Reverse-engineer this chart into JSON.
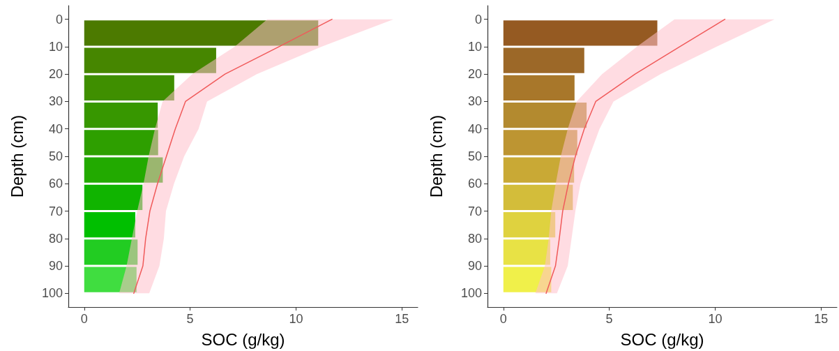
{
  "chart_data": [
    {
      "type": "histogram",
      "orientation": "horizontal",
      "xlabel": "SOC (g/kg)",
      "ylabel": "Depth (cm)",
      "xlim": [
        -0.75,
        15.75
      ],
      "xticks": [
        0,
        5,
        10,
        15
      ],
      "ylim": [
        105,
        -5
      ],
      "yticks": [
        0,
        10,
        20,
        30,
        40,
        50,
        60,
        70,
        80,
        90,
        100
      ],
      "grid": false,
      "series": [
        {
          "type": "histogram",
          "bins": [
            0,
            10,
            20,
            30,
            40,
            50,
            60,
            70,
            80,
            90,
            100
          ],
          "values": [
            11.05,
            6.23,
            4.25,
            3.47,
            3.49,
            3.71,
            2.75,
            2.41,
            2.52,
            2.47
          ],
          "colors": [
            "#4c7a00",
            "#468600",
            "#3f8f00",
            "#379700",
            "#2e9f00",
            "#22aa00",
            "#10b400",
            "#00bf00",
            "#22cc22",
            "#40dd40"
          ]
        },
        {
          "type": "line",
          "color": "#f05a5a",
          "x": [
            0,
            10,
            20,
            30,
            40,
            50,
            60,
            70,
            80,
            90,
            100
          ],
          "values": [
            11.7,
            9.2,
            6.65,
            4.78,
            4.3,
            3.88,
            3.46,
            3.1,
            2.9,
            2.77,
            2.34
          ],
          "lower": [
            8.64,
            7.1,
            5.1,
            3.7,
            3.34,
            3.04,
            2.8,
            2.5,
            2.25,
            2.0,
            1.65
          ],
          "upper": [
            14.6,
            11.2,
            8.15,
            5.8,
            5.4,
            4.72,
            4.24,
            3.86,
            3.76,
            3.55,
            3.07
          ]
        }
      ]
    },
    {
      "type": "histogram",
      "orientation": "horizontal",
      "xlabel": "SOC (g/kg)",
      "ylabel": "Depth (cm)",
      "xlim": [
        -0.75,
        15.75
      ],
      "xticks": [
        0,
        5,
        10,
        15
      ],
      "ylim": [
        105,
        -5
      ],
      "yticks": [
        0,
        10,
        20,
        30,
        40,
        50,
        60,
        70,
        80,
        90,
        100
      ],
      "grid": false,
      "series": [
        {
          "type": "histogram",
          "bins": [
            0,
            10,
            20,
            30,
            40,
            50,
            60,
            70,
            80,
            90,
            100
          ],
          "values": [
            7.27,
            3.82,
            3.36,
            3.93,
            3.49,
            3.34,
            3.28,
            2.45,
            2.21,
            2.26
          ],
          "colors": [
            "#955a22",
            "#9c6828",
            "#a8772a",
            "#b38a2f",
            "#bd9532",
            "#c9a935",
            "#d3bd3a",
            "#dfd23f",
            "#e8e245",
            "#f0f04a"
          ]
        },
        {
          "type": "line",
          "color": "#f05a5a",
          "x": [
            0,
            10,
            20,
            30,
            40,
            50,
            60,
            70,
            80,
            90,
            100
          ],
          "values": [
            10.46,
            8.33,
            6.22,
            4.36,
            3.82,
            3.4,
            3.07,
            2.8,
            2.64,
            2.46,
            2.02
          ],
          "lower": [
            8.08,
            6.3,
            4.66,
            3.46,
            3.04,
            2.71,
            2.47,
            2.26,
            2.14,
            1.96,
            1.51
          ],
          "upper": [
            12.8,
            10.06,
            7.42,
            5.2,
            4.54,
            4.06,
            3.64,
            3.4,
            3.22,
            3.04,
            2.53
          ]
        }
      ]
    }
  ]
}
